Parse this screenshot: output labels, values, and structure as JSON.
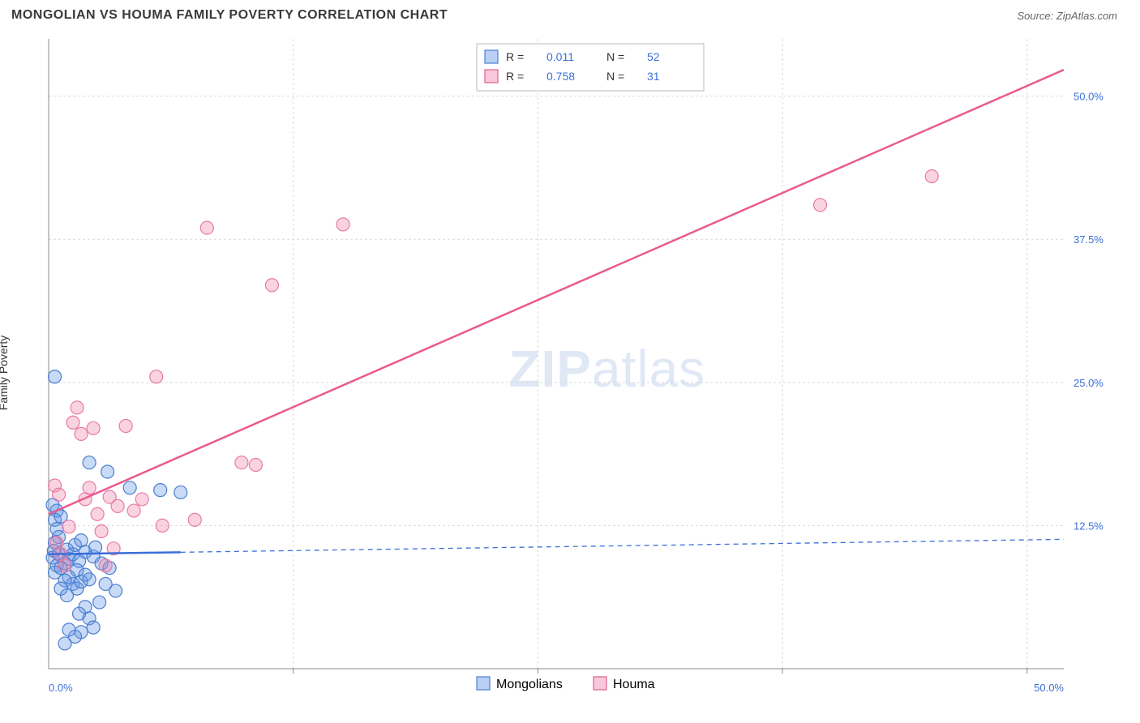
{
  "title": "MONGOLIAN VS HOUMA FAMILY POVERTY CORRELATION CHART",
  "source_label": "Source: ZipAtlas.com",
  "ylabel": "Family Poverty",
  "watermark_bold": "ZIP",
  "watermark_light": "atlas",
  "chart": {
    "type": "scatter",
    "xlim": [
      0,
      50
    ],
    "ylim": [
      0,
      55
    ],
    "y_ticks": [
      12.5,
      25.0,
      37.5,
      50.0
    ],
    "y_tick_labels": [
      "12.5%",
      "25.0%",
      "37.5%",
      "50.0%"
    ],
    "x_tick_left": "0.0%",
    "x_tick_right": "50.0%",
    "grid_color": "#d9d9d9",
    "axis_color": "#888888",
    "background": "#ffffff",
    "tick_label_color": "#3b6fd8",
    "marker_radius": 8,
    "series": [
      {
        "name": "Mongolians",
        "label": "Mongolians",
        "color_fill": "rgba(100,150,230,0.35)",
        "color_stroke": "#4a7fd0",
        "R": "0.011",
        "N": "52",
        "regression": {
          "x1": 0,
          "y1": 10.0,
          "x2": 50,
          "y2": 11.3,
          "solid_until_x": 6.5
        },
        "points": [
          [
            0.3,
            25.5
          ],
          [
            0.2,
            14.3
          ],
          [
            0.4,
            13.8
          ],
          [
            0.3,
            13.0
          ],
          [
            0.6,
            13.3
          ],
          [
            0.4,
            12.2
          ],
          [
            0.5,
            11.5
          ],
          [
            0.3,
            11.0
          ],
          [
            0.25,
            10.3
          ],
          [
            0.2,
            9.7
          ],
          [
            0.5,
            10.0
          ],
          [
            0.4,
            9.0
          ],
          [
            0.3,
            8.4
          ],
          [
            0.6,
            8.8
          ],
          [
            0.8,
            9.2
          ],
          [
            1.0,
            9.6
          ],
          [
            0.9,
            10.4
          ],
          [
            1.2,
            10.0
          ],
          [
            1.3,
            10.8
          ],
          [
            1.5,
            9.4
          ],
          [
            1.6,
            11.2
          ],
          [
            1.8,
            10.2
          ],
          [
            1.4,
            8.6
          ],
          [
            1.0,
            8.0
          ],
          [
            1.2,
            7.4
          ],
          [
            0.8,
            7.7
          ],
          [
            0.6,
            7.0
          ],
          [
            0.9,
            6.4
          ],
          [
            1.4,
            7.0
          ],
          [
            1.6,
            7.6
          ],
          [
            1.8,
            8.2
          ],
          [
            2.0,
            7.8
          ],
          [
            2.2,
            9.8
          ],
          [
            2.3,
            10.6
          ],
          [
            2.6,
            9.2
          ],
          [
            2.8,
            7.4
          ],
          [
            3.0,
            8.8
          ],
          [
            3.3,
            6.8
          ],
          [
            2.5,
            5.8
          ],
          [
            1.8,
            5.4
          ],
          [
            1.5,
            4.8
          ],
          [
            2.0,
            4.4
          ],
          [
            2.2,
            3.6
          ],
          [
            1.6,
            3.2
          ],
          [
            1.3,
            2.8
          ],
          [
            1.0,
            3.4
          ],
          [
            0.8,
            2.2
          ],
          [
            2.0,
            18.0
          ],
          [
            2.9,
            17.2
          ],
          [
            4.0,
            15.8
          ],
          [
            5.5,
            15.6
          ],
          [
            6.5,
            15.4
          ]
        ]
      },
      {
        "name": "Houma",
        "label": "Houma",
        "color_fill": "rgba(240,130,170,0.35)",
        "color_stroke": "#e87aa5",
        "R": "0.758",
        "N": "31",
        "regression": {
          "x1": 0,
          "y1": 13.5,
          "x2": 50,
          "y2": 52.3
        },
        "points": [
          [
            0.3,
            16.0
          ],
          [
            0.5,
            15.2
          ],
          [
            0.4,
            11.0
          ],
          [
            0.6,
            10.0
          ],
          [
            0.8,
            9.0
          ],
          [
            1.0,
            12.4
          ],
          [
            1.2,
            21.5
          ],
          [
            1.4,
            22.8
          ],
          [
            1.6,
            20.5
          ],
          [
            1.8,
            14.8
          ],
          [
            2.0,
            15.8
          ],
          [
            2.2,
            21.0
          ],
          [
            2.4,
            13.5
          ],
          [
            2.6,
            12.0
          ],
          [
            3.0,
            15.0
          ],
          [
            3.2,
            10.5
          ],
          [
            3.4,
            14.2
          ],
          [
            3.8,
            21.2
          ],
          [
            4.2,
            13.8
          ],
          [
            4.6,
            14.8
          ],
          [
            5.3,
            25.5
          ],
          [
            5.6,
            12.5
          ],
          [
            7.2,
            13.0
          ],
          [
            7.8,
            38.5
          ],
          [
            9.5,
            18.0
          ],
          [
            10.2,
            17.8
          ],
          [
            11.0,
            33.5
          ],
          [
            14.5,
            38.8
          ],
          [
            38.0,
            40.5
          ],
          [
            43.5,
            43.0
          ],
          [
            2.8,
            9.0
          ]
        ]
      }
    ],
    "top_legend": {
      "R_label": "R  =",
      "N_label": "N  ="
    },
    "bottom_legend": {
      "items": [
        "Mongolians",
        "Houma"
      ]
    }
  }
}
